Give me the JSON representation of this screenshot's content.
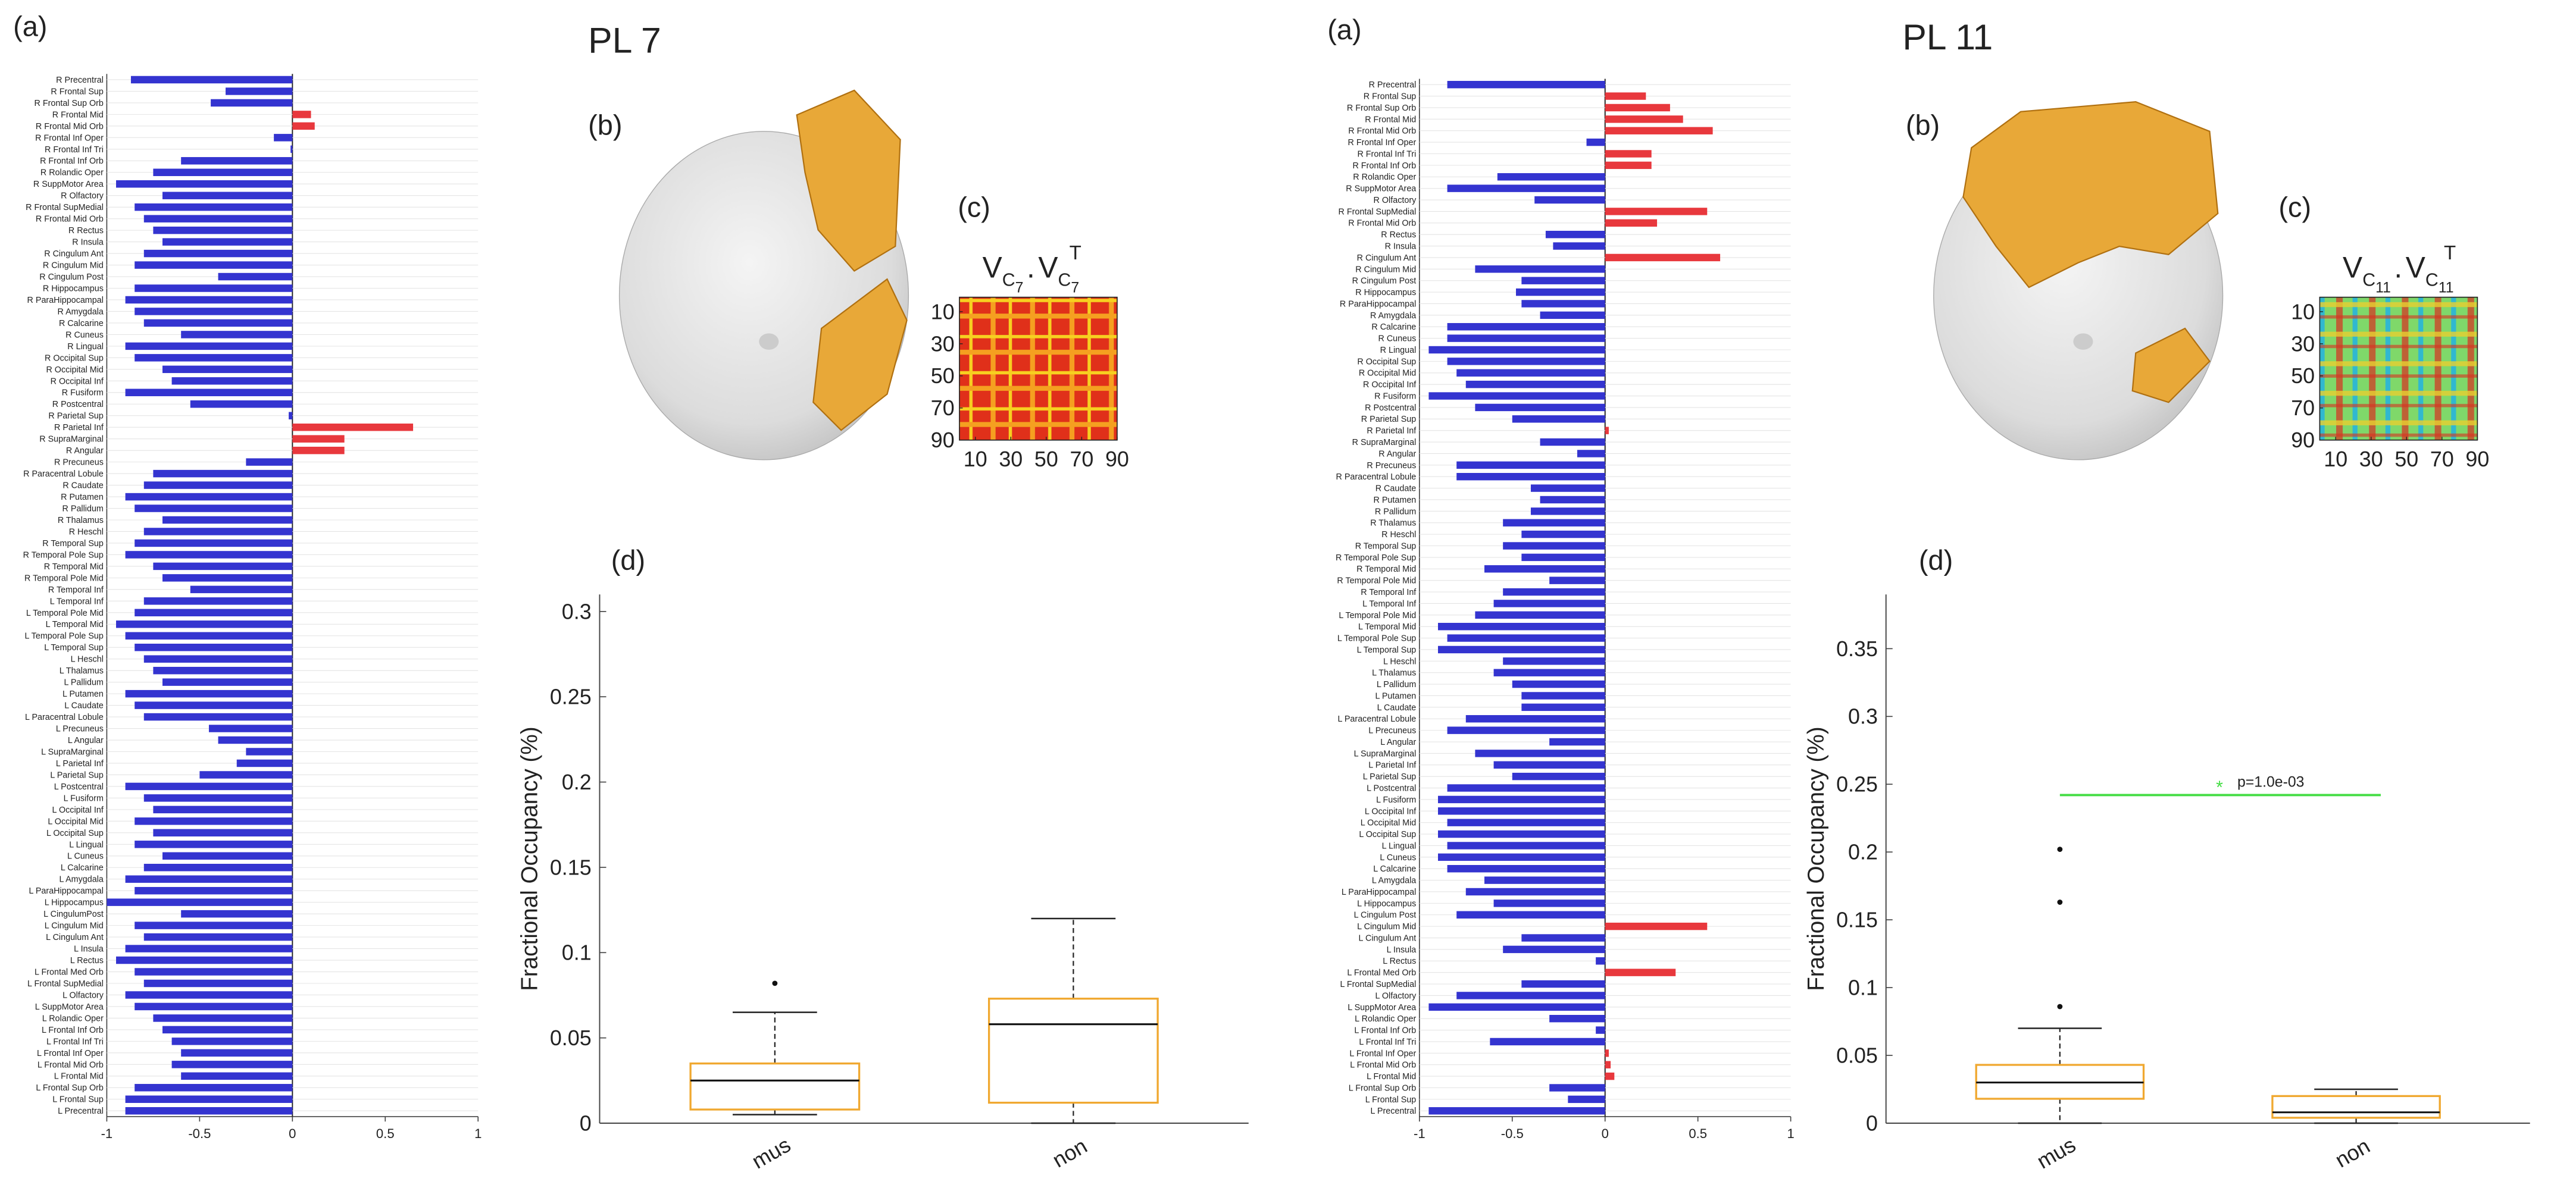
{
  "titles": [
    "PL 7",
    "PL 11"
  ],
  "brain_labels": [
    "(b)",
    "(b)"
  ],
  "chart_data": [
    {
      "type": "barh",
      "panel": "(a)",
      "categories": [
        "R Precentral",
        "R Frontal Sup",
        "R Frontal Sup Orb",
        "R Frontal Mid",
        "R Frontal Mid Orb",
        "R Frontal Inf Oper",
        "R Frontal Inf Tri",
        "R Frontal Inf Orb",
        "R Rolandic Oper",
        "R SuppMotor Area",
        "R Olfactory",
        "R Frontal SupMedial",
        "R Frontal Mid Orb",
        "R Rectus",
        "R Insula",
        "R Cingulum Ant",
        "R Cingulum Mid",
        "R Cingulum Post",
        "R Hippocampus",
        "R ParaHippocampal",
        "R Amygdala",
        "R Calcarine",
        "R Cuneus",
        "R Lingual",
        "R Occipital Sup",
        "R Occipital Mid",
        "R Occipital Inf",
        "R Fusiform",
        "R Postcentral",
        "R Parietal Sup",
        "R Parietal Inf",
        "R SupraMarginal",
        "R Angular",
        "R Precuneus",
        "R Paracentral Lobule",
        "R Caudate",
        "R Putamen",
        "R Pallidum",
        "R Thalamus",
        "R Heschl",
        "R Temporal Sup",
        "R Temporal Pole Sup",
        "R Temporal Mid",
        "R Temporal Pole Mid",
        "R Temporal Inf",
        "L Temporal Inf",
        "L Temporal Pole Mid",
        "L Temporal Mid",
        "L Temporal Pole Sup",
        "L Temporal Sup",
        "L Heschl",
        "L Thalamus",
        "L Pallidum",
        "L Putamen",
        "L Caudate",
        "L Paracentral Lobule",
        "L Precuneus",
        "L Angular",
        "L SupraMarginal",
        "L Parietal Inf",
        "L Parietal Sup",
        "L Postcentral",
        "L Fusiform",
        "L Occipital Inf",
        "L Occipital Mid",
        "L Occipital Sup",
        "L Lingual",
        "L Cuneus",
        "L Calcarine",
        "L Amygdala",
        "L ParaHippocampal",
        "L Hippocampus",
        "L CingulumPost",
        "L Cingulum Mid",
        "L Cingulum Ant",
        "L Insula",
        "L Rectus",
        "L Frontal Med Orb",
        "L Frontal SupMedial",
        "L Olfactory",
        "L SuppMotor Area",
        "L Rolandic Oper",
        "L Frontal Inf Orb",
        "L Frontal Inf Tri",
        "L Frontal Inf Oper",
        "L Frontal Mid Orb",
        "L Frontal Mid",
        "L Frontal Sup Orb",
        "L Frontal Sup",
        "L Precentral"
      ],
      "values": [
        -0.87,
        -0.36,
        -0.44,
        0.1,
        0.12,
        -0.1,
        -0.01,
        -0.6,
        -0.75,
        -0.95,
        -0.7,
        -0.85,
        -0.8,
        -0.75,
        -0.7,
        -0.8,
        -0.85,
        -0.4,
        -0.85,
        -0.9,
        -0.85,
        -0.8,
        -0.6,
        -0.9,
        -0.85,
        -0.7,
        -0.65,
        -0.9,
        -0.55,
        -0.02,
        0.65,
        0.28,
        0.28,
        -0.25,
        -0.75,
        -0.8,
        -0.9,
        -0.85,
        -0.7,
        -0.8,
        -0.85,
        -0.9,
        -0.75,
        -0.7,
        -0.55,
        -0.8,
        -0.85,
        -0.95,
        -0.9,
        -0.85,
        -0.8,
        -0.75,
        -0.7,
        -0.9,
        -0.85,
        -0.8,
        -0.45,
        -0.4,
        -0.25,
        -0.3,
        -0.5,
        -0.9,
        -0.8,
        -0.75,
        -0.85,
        -0.75,
        -0.85,
        -0.7,
        -0.8,
        -0.9,
        -0.85,
        -1.0,
        -0.6,
        -0.85,
        -0.8,
        -0.9,
        -0.95,
        -0.85,
        -0.8,
        -0.9,
        -0.85,
        -0.75,
        -0.7,
        -0.65,
        -0.6,
        -0.65,
        -0.6,
        -0.85,
        -0.9,
        -0.9
      ],
      "xlim": [
        -1,
        1
      ],
      "xticks": [
        -1,
        -0.5,
        0,
        0.5,
        1
      ],
      "positive_color": "#e8383d",
      "negative_color": "#3434d0"
    },
    {
      "type": "heatmap",
      "panel": "(c)",
      "title_parts": {
        "v": "V",
        "c": "C",
        "index": "7",
        "dot": ".",
        "t": "T"
      },
      "xlim": [
        1,
        90
      ],
      "ylim": [
        1,
        90
      ],
      "xticks": [
        10,
        30,
        50,
        70,
        90
      ],
      "yticks": [
        10,
        30,
        50,
        70,
        90
      ],
      "palette": "red"
    },
    {
      "type": "box",
      "panel": "(d)",
      "ylabel": "Fractional Occupancy (%)",
      "categories": [
        "mus",
        "non"
      ],
      "boxes": [
        {
          "min": 0.005,
          "q1": 0.008,
          "median": 0.025,
          "q3": 0.035,
          "max": 0.065,
          "outliers": [
            0.082
          ]
        },
        {
          "min": 0,
          "q1": 0.012,
          "median": 0.058,
          "q3": 0.073,
          "max": 0.12,
          "outliers": []
        }
      ],
      "ylim": [
        0,
        0.31
      ],
      "yticks": [
        0,
        0.05,
        0.1,
        0.15,
        0.2,
        0.25,
        0.3
      ],
      "color": "#f0a830"
    },
    {
      "type": "barh",
      "panel": "(a)",
      "categories": [
        "R Precentral",
        "R Frontal Sup",
        "R Frontal Sup Orb",
        "R Frontal Mid",
        "R Frontal Mid Orb",
        "R Frontal Inf Oper",
        "R Frontal Inf Tri",
        "R Frontal Inf Orb",
        "R Rolandic Oper",
        "R SuppMotor Area",
        "R Olfactory",
        "R Frontal SupMedial",
        "R Frontal Mid Orb",
        "R Rectus",
        "R Insula",
        "R Cingulum Ant",
        "R Cingulum Mid",
        "R Cingulum Post",
        "R Hippocampus",
        "R ParaHippocampal",
        "R Amygdala",
        "R Calcarine",
        "R Cuneus",
        "R Lingual",
        "R Occipital Sup",
        "R Occipital Mid",
        "R Occipital Inf",
        "R Fusiform",
        "R Postcentral",
        "R Parietal Sup",
        "R Parietal Inf",
        "R SupraMarginal",
        "R Angular",
        "R Precuneus",
        "R Paracentral Lobule",
        "R Caudate",
        "R Putamen",
        "R Pallidum",
        "R Thalamus",
        "R Heschl",
        "R Temporal Sup",
        "R Temporal Pole Sup",
        "R Temporal Mid",
        "R Temporal Pole Mid",
        "R Temporal Inf",
        "L Temporal Inf",
        "L Temporal Pole Mid",
        "L Temporal Mid",
        "L Temporal Pole Sup",
        "L Temporal Sup",
        "L Heschl",
        "L Thalamus",
        "L Pallidum",
        "L Putamen",
        "L Caudate",
        "L Paracentral Lobule",
        "L Precuneus",
        "L Angular",
        "L SupraMarginal",
        "L Parietal Inf",
        "L Parietal Sup",
        "L Postcentral",
        "L Fusiform",
        "L Occipital Inf",
        "L Occipital Mid",
        "L Occipital Sup",
        "L Lingual",
        "L Cuneus",
        "L Calcarine",
        "L Amygdala",
        "L ParaHippocampal",
        "L Hippocampus",
        "L Cingulum Post",
        "L Cingulum Mid",
        "L Cingulum Ant",
        "L Insula",
        "L Rectus",
        "L Frontal Med Orb",
        "L Frontal SupMedial",
        "L Olfactory",
        "L SuppMotor Area",
        "L Rolandic Oper",
        "L Frontal Inf Orb",
        "L Frontal Inf Tri",
        "L Frontal Inf Oper",
        "L Frontal Mid Orb",
        "L Frontal Mid",
        "L Frontal Sup Orb",
        "L Frontal Sup",
        "L Precentral"
      ],
      "values": [
        -0.85,
        0.22,
        0.35,
        0.42,
        0.58,
        -0.1,
        0.25,
        0.25,
        -0.58,
        -0.85,
        -0.38,
        0.55,
        0.28,
        -0.32,
        -0.28,
        0.62,
        -0.7,
        -0.45,
        -0.48,
        -0.45,
        -0.35,
        -0.85,
        -0.85,
        -0.95,
        -0.85,
        -0.8,
        -0.75,
        -0.95,
        -0.7,
        -0.5,
        0.02,
        -0.35,
        -0.15,
        -0.8,
        -0.8,
        -0.4,
        -0.35,
        -0.4,
        -0.55,
        -0.45,
        -0.55,
        -0.45,
        -0.65,
        -0.3,
        -0.55,
        -0.6,
        -0.7,
        -0.9,
        -0.85,
        -0.9,
        -0.55,
        -0.6,
        -0.5,
        -0.45,
        -0.45,
        -0.75,
        -0.85,
        -0.3,
        -0.7,
        -0.6,
        -0.5,
        -0.85,
        -0.9,
        -0.9,
        -0.85,
        -0.9,
        -0.85,
        -0.9,
        -0.85,
        -0.65,
        -0.75,
        -0.6,
        -0.8,
        0.55,
        -0.45,
        -0.55,
        -0.05,
        0.38,
        -0.45,
        -0.8,
        -0.95,
        -0.3,
        -0.05,
        -0.62,
        0.02,
        0.03,
        0.05,
        -0.3,
        -0.2,
        -0.95
      ],
      "xlim": [
        -1,
        1
      ],
      "xticks": [
        -1,
        -0.5,
        0,
        0.5,
        1
      ],
      "positive_color": "#e8383d",
      "negative_color": "#3434d0"
    },
    {
      "type": "heatmap",
      "panel": "(c)",
      "title_parts": {
        "v": "V",
        "c": "C",
        "index": "11",
        "dot": ".",
        "t": "T"
      },
      "xlim": [
        1,
        90
      ],
      "ylim": [
        1,
        90
      ],
      "xticks": [
        10,
        30,
        50,
        70,
        90
      ],
      "yticks": [
        10,
        30,
        50,
        70,
        90
      ],
      "palette": "green"
    },
    {
      "type": "box",
      "panel": "(d)",
      "ylabel": "Fractional Occupancy (%)",
      "categories": [
        "mus",
        "non"
      ],
      "boxes": [
        {
          "min": 0,
          "q1": 0.018,
          "median": 0.03,
          "q3": 0.043,
          "max": 0.07,
          "outliers": [
            0.086,
            0.163,
            0.202
          ]
        },
        {
          "min": 0,
          "q1": 0.004,
          "median": 0.008,
          "q3": 0.02,
          "max": 0.025,
          "outliers": []
        }
      ],
      "ylim": [
        0,
        0.39
      ],
      "yticks": [
        0,
        0.05,
        0.1,
        0.15,
        0.2,
        0.25,
        0.3,
        0.35
      ],
      "color": "#f0a830",
      "annotation": {
        "marker": "*",
        "text": "p=1.0e-03",
        "y": 0.242,
        "color": "#44dd44"
      }
    }
  ]
}
